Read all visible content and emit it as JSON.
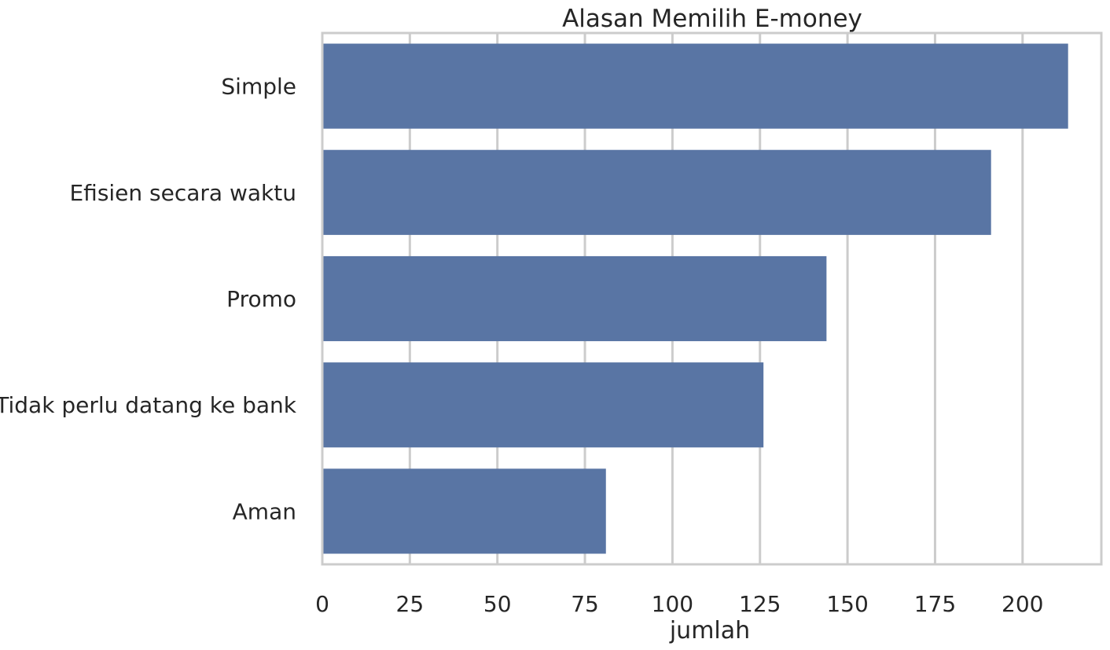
{
  "chart_data": {
    "type": "bar",
    "orientation": "horizontal",
    "title": "Alasan Memilih E-money",
    "xlabel": "jumlah",
    "ylabel": "",
    "categories": [
      "Simple",
      "Efisien secara waktu",
      "Promo",
      "Tidak perlu datang ke bank",
      "Aman"
    ],
    "values": [
      213,
      191,
      144,
      126,
      81
    ],
    "xlim": [
      0,
      222.5
    ],
    "xticks": [
      0,
      25,
      50,
      75,
      100,
      125,
      150,
      175,
      200
    ],
    "grid": "vertical",
    "bar_color": "#5975a4",
    "grid_color": "#cccccc"
  }
}
